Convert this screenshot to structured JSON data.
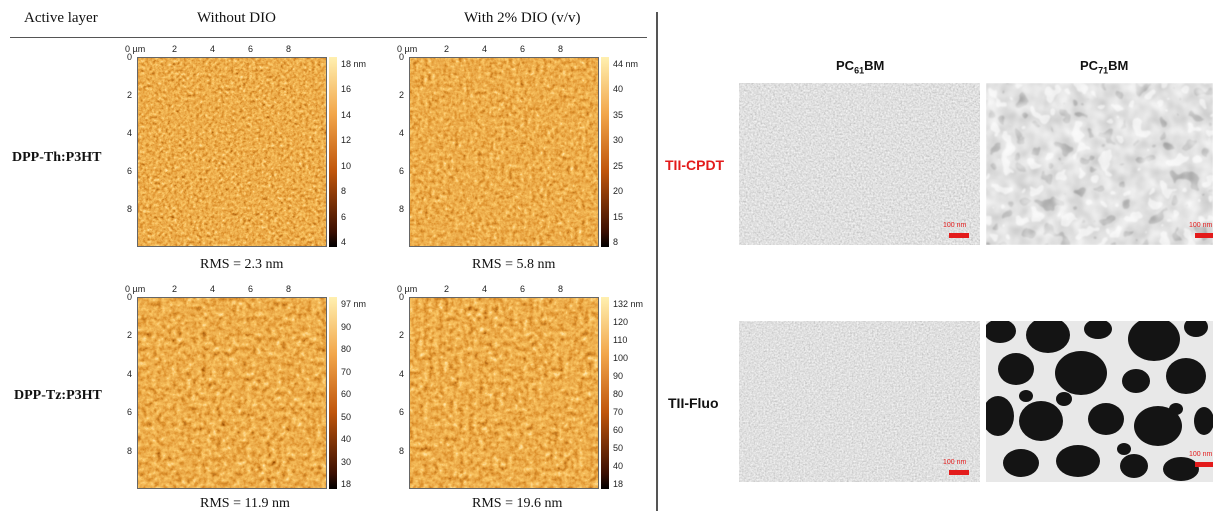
{
  "left_panel": {
    "col_headers": [
      "Active layer",
      "Without DIO",
      "With 2% DIO (v/v)"
    ],
    "rows": [
      {
        "label": "DPP-Th:P3HT",
        "label_color": "#111111",
        "images": [
          {
            "rms": "RMS = 2.3 nm",
            "colorbar_ticks": [
              "18 nm",
              "16",
              "14",
              "12",
              "10",
              "8",
              "6",
              "4"
            ]
          },
          {
            "rms": "RMS = 5.8 nm",
            "colorbar_ticks": [
              "44 nm",
              "40",
              "35",
              "30",
              "25",
              "20",
              "15",
              "8"
            ]
          }
        ]
      },
      {
        "label": "DPP-Tz:P3HT",
        "label_color": "#e31b1b",
        "images": [
          {
            "rms": "RMS = 11.9 nm",
            "colorbar_ticks": [
              "97 nm",
              "90",
              "80",
              "70",
              "60",
              "50",
              "40",
              "30",
              "18"
            ]
          },
          {
            "rms": "RMS = 19.6 nm",
            "colorbar_ticks": [
              "132 nm",
              "120",
              "110",
              "100",
              "90",
              "80",
              "70",
              "60",
              "50",
              "40",
              "18"
            ]
          }
        ]
      }
    ],
    "x_ticks": [
      "0 µm",
      "2",
      "4",
      "6",
      "8"
    ],
    "y_ticks": [
      "0",
      "2",
      "4",
      "6",
      "8"
    ]
  },
  "right_panel": {
    "col_headers": [
      {
        "base": "PC",
        "sub": "61",
        "suffix": "BM"
      },
      {
        "base": "PC",
        "sub": "71",
        "suffix": "BM"
      }
    ],
    "rows": [
      {
        "label": "TII-CPDT",
        "label_color": "#e31b1b"
      },
      {
        "label": "TII-Fluo",
        "label_color": "#111111"
      }
    ],
    "scale_label": "100 nm"
  },
  "colors": {
    "afm_dark": "#3a0f02",
    "afm_mid": "#c0560c",
    "afm_light": "#fff0b0",
    "accent_red": "#e31b1b"
  }
}
